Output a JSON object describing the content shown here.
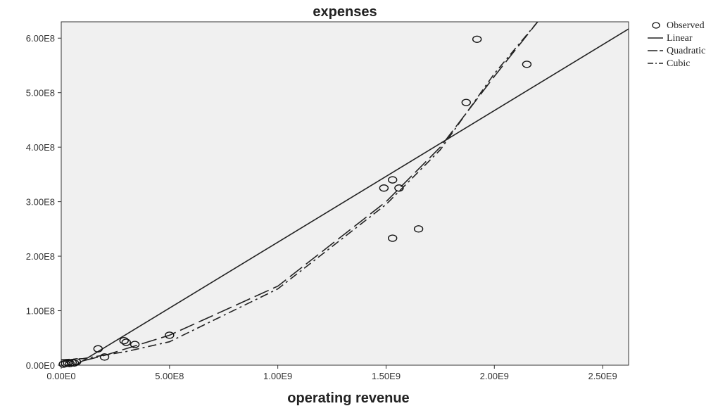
{
  "chart_data": {
    "type": "scatter",
    "title": "expenses",
    "xlabel": "operating revenue",
    "ylabel": "",
    "xlim": [
      0,
      2620000000.0
    ],
    "ylim": [
      0,
      630000000.0
    ],
    "x_ticks": [
      {
        "value": 0,
        "label": "0.00E0"
      },
      {
        "value": 500000000.0,
        "label": "5.00E8"
      },
      {
        "value": 1000000000.0,
        "label": "1.00E9"
      },
      {
        "value": 1500000000.0,
        "label": "1.50E9"
      },
      {
        "value": 2000000000.0,
        "label": "2.00E9"
      },
      {
        "value": 2500000000.0,
        "label": "2.50E9"
      }
    ],
    "y_ticks": [
      {
        "value": 0,
        "label": "0.00E0"
      },
      {
        "value": 100000000.0,
        "label": "1.00E8"
      },
      {
        "value": 200000000.0,
        "label": "2.00E8"
      },
      {
        "value": 300000000.0,
        "label": "3.00E8"
      },
      {
        "value": 400000000.0,
        "label": "4.00E8"
      },
      {
        "value": 500000000.0,
        "label": "5.00E8"
      },
      {
        "value": 600000000.0,
        "label": "6.00E8"
      }
    ],
    "grid": false,
    "legend_position": "top-right",
    "observed": {
      "name": "Observed",
      "points": [
        [
          10000000.0,
          2000000.0
        ],
        [
          20000000.0,
          3000000.0
        ],
        [
          30000000.0,
          4000000.0
        ],
        [
          40000000.0,
          3000000.0
        ],
        [
          50000000.0,
          5000000.0
        ],
        [
          60000000.0,
          4000000.0
        ],
        [
          70000000.0,
          6000000.0
        ],
        [
          170000000.0,
          30000000.0
        ],
        [
          200000000.0,
          15000000.0
        ],
        [
          290000000.0,
          45000000.0
        ],
        [
          300000000.0,
          42000000.0
        ],
        [
          340000000.0,
          38000000.0
        ],
        [
          500000000.0,
          55000000.0
        ],
        [
          1490000000.0,
          325000000.0
        ],
        [
          1530000000.0,
          340000000.0
        ],
        [
          1530000000.0,
          233000000.0
        ],
        [
          1560000000.0,
          325000000.0
        ],
        [
          1650000000.0,
          250000000.0
        ],
        [
          1870000000.0,
          482000000.0
        ],
        [
          1920000000.0,
          598000000.0
        ],
        [
          2150000000.0,
          552000000.0
        ]
      ]
    },
    "series": [
      {
        "name": "Linear",
        "dash": "",
        "x": [
          0,
          2620000000.0
        ],
        "y": [
          -16000000.0,
          617000000.0
        ]
      },
      {
        "name": "Quadratic",
        "dash": "22 7",
        "x": [
          100000000.0,
          200000000.0,
          500000000.0,
          1000000000.0,
          1500000000.0,
          1750000000.0,
          2000000000.0,
          2200000000.0
        ],
        "y": [
          8000000.0,
          18000000.0,
          55000000.0,
          145000000.0,
          300000000.0,
          400000000.0,
          530000000.0,
          630000000.0
        ]
      },
      {
        "name": "Cubic",
        "dash": "12 5 3 5",
        "x": [
          0,
          100000000.0,
          300000000.0,
          500000000.0,
          1000000000.0,
          1500000000.0,
          1750000000.0,
          2000000000.0,
          2200000000.0
        ],
        "y": [
          10000000.0,
          12000000.0,
          25000000.0,
          43000000.0,
          140000000.0,
          295000000.0,
          395000000.0,
          535000000.0,
          630000000.0
        ]
      }
    ]
  }
}
